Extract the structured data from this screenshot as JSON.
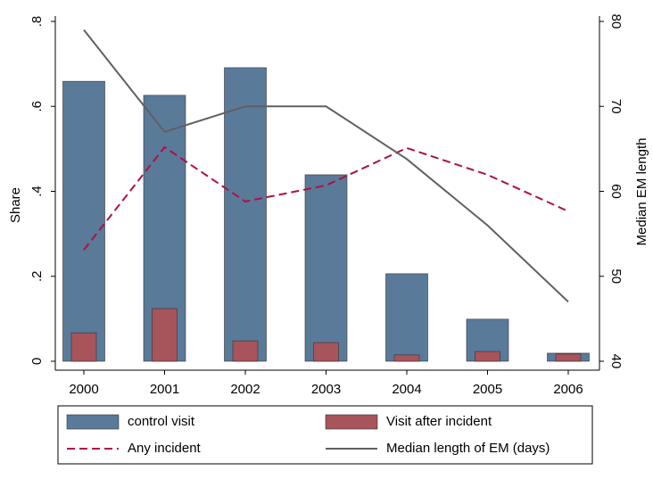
{
  "chart_data": {
    "type": "bar",
    "categories": [
      "2000",
      "2001",
      "2002",
      "2003",
      "2004",
      "2005",
      "2006"
    ],
    "ylabel": "Share",
    "y2label": "Median EM length",
    "ylim": [
      0,
      0.8
    ],
    "yticks": [
      0,
      {
        "value": 0.2,
        "label": ".2"
      },
      {
        "value": 0.4,
        "label": ".4"
      },
      {
        "value": 0.6,
        "label": ".6"
      },
      {
        "value": 0.8,
        "label": ".8"
      }
    ],
    "y2lim": [
      40,
      80
    ],
    "y2ticks": [
      40,
      50,
      60,
      70,
      80
    ],
    "series": [
      {
        "name": "control visit",
        "type": "bar",
        "color": "#5a7a9a",
        "values": [
          0.659,
          0.626,
          0.691,
          0.439,
          0.206,
          0.099,
          0.019
        ]
      },
      {
        "name": "Visit after incident",
        "type": "bar",
        "color": "#a8545b",
        "values": [
          0.067,
          0.124,
          0.048,
          0.044,
          0.015,
          0.023,
          0.017
        ]
      },
      {
        "name": "Any incident",
        "type": "line",
        "dashed": true,
        "color": "#b01040",
        "values": [
          0.262,
          0.504,
          0.376,
          0.414,
          0.502,
          0.439,
          0.353
        ]
      },
      {
        "name": "Median length of EM (days)",
        "type": "line",
        "axis": "y2",
        "color": "#606060",
        "values": [
          79,
          67,
          70,
          70,
          63.8,
          56,
          47
        ]
      }
    ]
  }
}
